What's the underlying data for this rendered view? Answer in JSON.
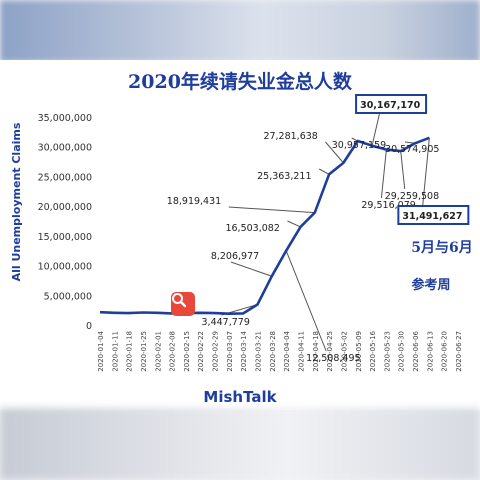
{
  "chart_data": {
    "type": "line",
    "title": "2020年续请失业金总人数",
    "ylabel": "All Unemployment  Claims",
    "xlabel": "",
    "source": "MishTalk",
    "period_note": "5月与6月",
    "reference_note": "参考周",
    "ylim": [
      0,
      35000000
    ],
    "y_ticks": [
      0,
      5000000,
      10000000,
      15000000,
      20000000,
      25000000,
      30000000,
      35000000
    ],
    "y_tick_labels": [
      "0",
      "5,000,000",
      "10,000,000",
      "15,000,000",
      "20,000,000",
      "25,000,000",
      "30,000,000",
      "35,000,000"
    ],
    "grid": false,
    "x": [
      "2020-01-04",
      "2020-01-11",
      "2020-01-18",
      "2020-01-25",
      "2020-02-01",
      "2020-02-08",
      "2020-02-15",
      "2020-02-22",
      "2020-02-29",
      "2020-03-07",
      "2020-03-14",
      "2020-03-21",
      "2020-03-28",
      "2020-04-04",
      "2020-04-11",
      "2020-04-18",
      "2020-04-25",
      "2020-05-02",
      "2020-05-09",
      "2020-05-16",
      "2020-05-23",
      "2020-05-30",
      "2020-06-06",
      "2020-06-13",
      "2020-06-20",
      "2020-06-27"
    ],
    "series": [
      {
        "name": "",
        "color": "#1f3e9c",
        "values": [
          2150000,
          2050000,
          2000000,
          2100000,
          2050000,
          1950000,
          2000000,
          2050000,
          2000000,
          1900000,
          1950000,
          3447779,
          8206977,
          12508495,
          16503082,
          18919431,
          25363211,
          27281638,
          30957159,
          30167170,
          29516079,
          29259508,
          30574905,
          31491627,
          null,
          null
        ]
      }
    ],
    "annotations": [
      {
        "text": "3,447,779",
        "x": "2020-03-21",
        "value": 3447779,
        "boxed": false
      },
      {
        "text": "8,206,977",
        "x": "2020-03-28",
        "value": 8206977,
        "boxed": false
      },
      {
        "text": "12,508,495",
        "x": "2020-04-04",
        "value": 12508495,
        "boxed": false
      },
      {
        "text": "16,503,082",
        "x": "2020-04-11",
        "value": 16503082,
        "boxed": false
      },
      {
        "text": "18,919,431",
        "x": "2020-04-18",
        "value": 18919431,
        "boxed": false
      },
      {
        "text": "25,363,211",
        "x": "2020-04-25",
        "value": 25363211,
        "boxed": false
      },
      {
        "text": "27,281,638",
        "x": "2020-05-02",
        "value": 27281638,
        "boxed": false
      },
      {
        "text": "30,957,159",
        "x": "2020-05-09",
        "value": 30957159,
        "boxed": false
      },
      {
        "text": "30,167,170",
        "x": "2020-05-16",
        "value": 30167170,
        "boxed": true
      },
      {
        "text": "29,516,079",
        "x": "2020-05-23",
        "value": 29516079,
        "boxed": false
      },
      {
        "text": "29,259,508",
        "x": "2020-05-30",
        "value": 29259508,
        "boxed": false
      },
      {
        "text": "30,574,905",
        "x": "2020-06-06",
        "value": 30574905,
        "boxed": false
      },
      {
        "text": "31,491,627",
        "x": "2020-06-13",
        "value": 31491627,
        "boxed": true
      }
    ]
  },
  "colors": {
    "line": "#1f3e9c",
    "title": "#1f3e9c",
    "axis_text": "#333333",
    "leader": "#555555",
    "badge": "#e8473a"
  },
  "icons": {
    "zoom": "magnifier-icon"
  }
}
